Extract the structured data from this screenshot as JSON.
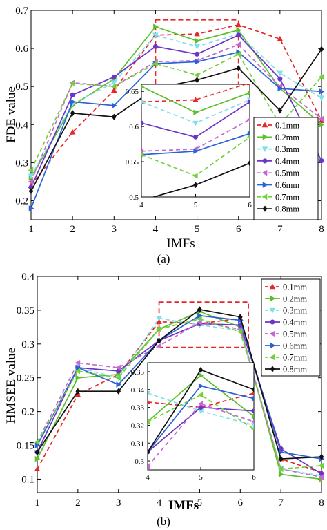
{
  "chart_data": [
    {
      "type": "line",
      "caption": "(a)",
      "xlabel": "IMFs",
      "ylabel": "FDE value",
      "x": [
        1,
        2,
        3,
        4,
        5,
        6,
        7,
        8
      ],
      "xlim": [
        1,
        8
      ],
      "ylim": [
        0.15,
        0.7
      ],
      "yticks": [
        0.2,
        0.3,
        0.4,
        0.5,
        0.6,
        0.7
      ],
      "ytick_labels": [
        "0.2",
        "0.3",
        "0.4",
        "0.5",
        "0.6",
        "0.7"
      ],
      "legend_position": "right",
      "highlight_box": {
        "x": [
          4,
          6
        ],
        "y": [
          0.49,
          0.675
        ]
      },
      "series": [
        {
          "name": "0.1mm",
          "color": "#e8262a",
          "dash": "6,4",
          "marker": "triangle",
          "values": [
            0.24,
            0.38,
            0.49,
            0.635,
            0.638,
            0.662,
            0.625,
            0.41
          ]
        },
        {
          "name": "0.2mm",
          "color": "#5ac02a",
          "dash": "",
          "marker": "triangle-right",
          "values": [
            0.26,
            0.45,
            0.52,
            0.657,
            0.62,
            0.648,
            0.495,
            0.4
          ]
        },
        {
          "name": "0.3mm",
          "color": "#7ee0ea",
          "dash": "6,4",
          "marker": "triangle-down",
          "values": [
            0.265,
            0.455,
            0.51,
            0.635,
            0.605,
            0.638,
            0.535,
            0.47
          ]
        },
        {
          "name": "0.4mm",
          "color": "#6b35c8",
          "dash": "",
          "marker": "circle",
          "values": [
            0.235,
            0.478,
            0.525,
            0.605,
            0.585,
            0.635,
            0.52,
            0.305
          ]
        },
        {
          "name": "0.5mm",
          "color": "#c468d4",
          "dash": "6,4",
          "marker": "triangle-left",
          "values": [
            0.25,
            0.51,
            0.5,
            0.565,
            0.568,
            0.61,
            0.5,
            0.415
          ]
        },
        {
          "name": "0.6mm",
          "color": "#2a62d8",
          "dash": "",
          "marker": "triangle-right",
          "values": [
            0.18,
            0.46,
            0.45,
            0.56,
            0.565,
            0.59,
            0.495,
            0.487
          ]
        },
        {
          "name": "0.7mm",
          "color": "#72d13a",
          "dash": "6,4",
          "marker": "triangle-left",
          "values": [
            0.28,
            0.508,
            0.5,
            0.56,
            0.53,
            0.585,
            0.4,
            0.525
          ]
        },
        {
          "name": "0.8mm",
          "color": "#111111",
          "dash": "",
          "marker": "diamond",
          "values": [
            0.225,
            0.43,
            0.42,
            0.495,
            0.517,
            0.548,
            0.437,
            0.598
          ]
        }
      ],
      "inset": {
        "xlim": [
          4,
          6
        ],
        "ylim": [
          0.5,
          0.66
        ],
        "xticks": [
          "4",
          "5",
          "6"
        ],
        "yticks": [
          0.5,
          0.55,
          0.6,
          0.65
        ],
        "ytick_labels": [
          "0.5",
          "0.55",
          "0.6",
          "0.65"
        ]
      }
    },
    {
      "type": "line",
      "caption": "(b)",
      "xlabel": "IMFs",
      "ylabel": "HMSEE value",
      "x": [
        1,
        2,
        3,
        4,
        5,
        6,
        7,
        8
      ],
      "xlim": [
        1,
        8
      ],
      "ylim": [
        0.08,
        0.4
      ],
      "yticks": [
        0.1,
        0.15,
        0.2,
        0.25,
        0.3,
        0.35,
        0.4
      ],
      "ytick_labels": [
        "0.1",
        "0.15",
        "0.2",
        "0.25",
        "0.3",
        "0.35",
        "0.4"
      ],
      "legend_position": "top-right",
      "highlight_box": {
        "x": [
          4,
          6.2
        ],
        "y": [
          0.295,
          0.362
        ]
      },
      "series": [
        {
          "name": "0.1mm",
          "color": "#e8262a",
          "dash": "6,4",
          "marker": "triangle",
          "values": [
            0.115,
            0.225,
            0.255,
            0.333,
            0.33,
            0.338,
            0.13,
            0.11
          ]
        },
        {
          "name": "0.2mm",
          "color": "#5ac02a",
          "dash": "",
          "marker": "triangle-right",
          "values": [
            0.13,
            0.25,
            0.255,
            0.322,
            0.348,
            0.325,
            0.107,
            0.1
          ]
        },
        {
          "name": "0.3mm",
          "color": "#7ee0ea",
          "dash": "6,4",
          "marker": "triangle-down",
          "values": [
            0.14,
            0.265,
            0.25,
            0.338,
            0.328,
            0.32,
            0.115,
            0.105
          ]
        },
        {
          "name": "0.4mm",
          "color": "#6b35c8",
          "dash": "",
          "marker": "circle",
          "values": [
            0.14,
            0.265,
            0.26,
            0.305,
            0.33,
            0.328,
            0.145,
            0.108
          ]
        },
        {
          "name": "0.5mm",
          "color": "#c468d4",
          "dash": "6,4",
          "marker": "triangle-left",
          "values": [
            0.155,
            0.272,
            0.265,
            0.297,
            0.332,
            0.322,
            0.115,
            0.103
          ]
        },
        {
          "name": "0.6mm",
          "color": "#2a62d8",
          "dash": "",
          "marker": "triangle-right",
          "values": [
            0.15,
            0.265,
            0.24,
            0.305,
            0.342,
            0.335,
            0.14,
            0.13
          ]
        },
        {
          "name": "0.7mm",
          "color": "#72d13a",
          "dash": "6,4",
          "marker": "triangle-left",
          "values": [
            0.155,
            0.26,
            0.25,
            0.322,
            0.337,
            0.318,
            0.115,
            0.12
          ]
        },
        {
          "name": "0.8mm",
          "color": "#111111",
          "dash": "",
          "marker": "diamond",
          "values": [
            0.14,
            0.23,
            0.23,
            0.305,
            0.351,
            0.34,
            0.13,
            0.133
          ]
        }
      ],
      "inset": {
        "xlim": [
          4,
          6
        ],
        "ylim": [
          0.295,
          0.355
        ],
        "xticks": [
          "4",
          "5",
          "6"
        ],
        "yticks": [
          0.3,
          0.31,
          0.32,
          0.33,
          0.34,
          0.35
        ],
        "ytick_labels": [
          "0.3",
          "0.31",
          "0.32",
          "0.33",
          "0.34",
          "0.35"
        ]
      }
    }
  ]
}
